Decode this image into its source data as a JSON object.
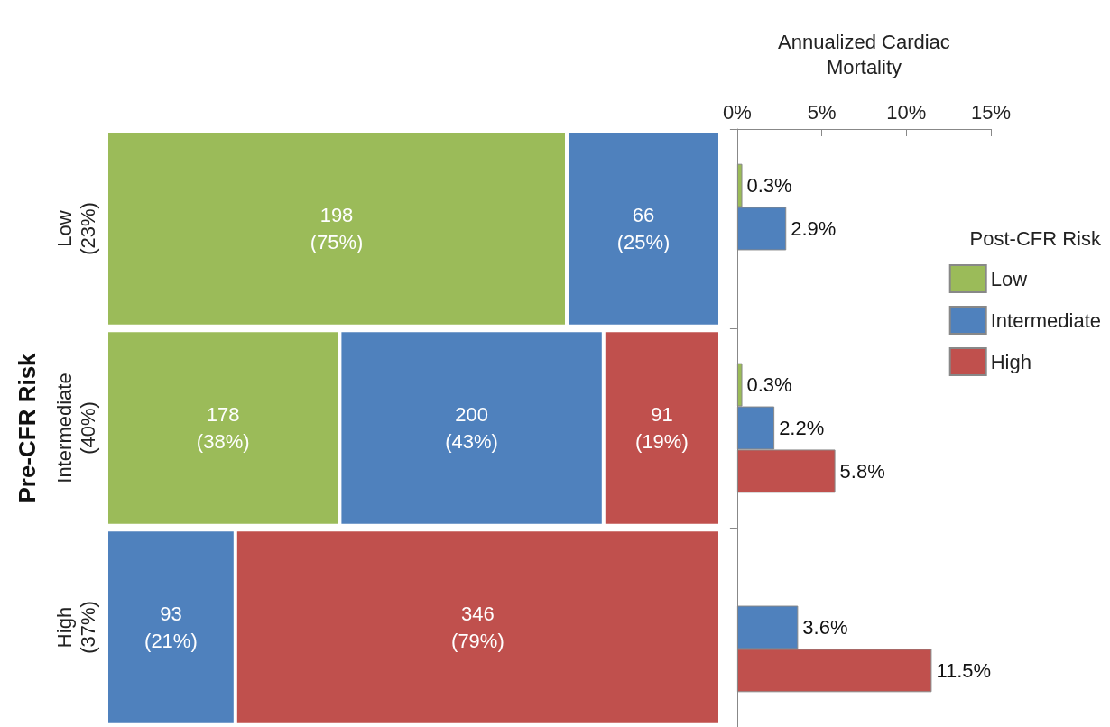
{
  "chart_data": [
    {
      "type": "bar",
      "stacked": true,
      "orientation": "horizontal",
      "ylabel": "Pre-CFR Risk",
      "categories": [
        "Low (23%)",
        "Intermediate (40%)",
        "High (37%)"
      ],
      "xlim": [
        0,
        100
      ],
      "tick_labels": "y",
      "series": [
        {
          "color": "#9bbb59",
          "values": [
            75,
            38,
            null
          ],
          "value_labels": [
            "198 (75%)",
            "178 (38%)",
            null
          ]
        },
        {
          "color": "#4f81bd",
          "values": [
            25,
            43,
            21
          ],
          "value_labels": [
            "66 (25%)",
            "200 (43%)",
            "93 (21%)"
          ]
        },
        {
          "color": "#c0504d",
          "values": [
            null,
            19,
            79
          ],
          "value_labels": [
            null,
            "91 (19%)",
            "346 (79%)"
          ]
        }
      ]
    },
    {
      "type": "bar",
      "orientation": "horizontal",
      "xlabel": "Annualized Cardiac Mortality",
      "categories": [
        null,
        null,
        null
      ],
      "xlim": [
        0,
        15
      ],
      "xticks": [
        {
          "value": 0,
          "label": "0%"
        },
        {
          "value": 5,
          "label": "5%"
        },
        {
          "value": 10,
          "label": "10%"
        },
        {
          "value": 15,
          "label": "15%"
        }
      ],
      "tick_labels": "x",
      "legend": "right",
      "legend_title": "Post-CFR Risk",
      "series": [
        {
          "name": "Low",
          "color": "#9bbb59",
          "values": [
            0.3,
            0.3,
            null
          ],
          "value_labels": [
            "0.3%",
            "0.3%",
            null
          ]
        },
        {
          "name": "Intermediate",
          "color": "#4f81bd",
          "values": [
            2.9,
            2.2,
            3.6
          ],
          "value_labels": [
            "2.9%",
            "2.2%",
            "3.6%"
          ]
        },
        {
          "name": "High",
          "color": "#c0504d",
          "values": [
            null,
            5.8,
            11.5
          ],
          "value_labels": [
            null,
            "5.8%",
            "11.5%"
          ]
        }
      ]
    }
  ]
}
